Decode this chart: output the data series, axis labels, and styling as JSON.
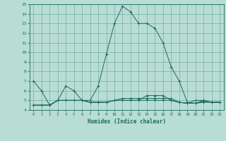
{
  "xlabel": "Humidex (Indice chaleur)",
  "ylabel": "",
  "xlim": [
    -0.5,
    23.5
  ],
  "ylim": [
    4,
    15
  ],
  "yticks": [
    4,
    5,
    6,
    7,
    8,
    9,
    10,
    11,
    12,
    13,
    14,
    15
  ],
  "xticks": [
    0,
    1,
    2,
    3,
    4,
    5,
    6,
    7,
    8,
    9,
    10,
    11,
    12,
    13,
    14,
    15,
    16,
    17,
    18,
    19,
    20,
    21,
    22,
    23
  ],
  "bg_color": "#b8ddd5",
  "line_color": "#1a6b5a",
  "grid_color": "#a0ccc4",
  "lines": [
    [
      7.0,
      6.0,
      4.5,
      5.0,
      6.5,
      6.0,
      5.0,
      5.0,
      6.5,
      9.8,
      13.0,
      14.8,
      14.2,
      13.0,
      13.0,
      12.5,
      11.0,
      8.5,
      7.0,
      4.8,
      4.7,
      5.0,
      4.8,
      4.8
    ],
    [
      4.5,
      4.5,
      4.5,
      5.0,
      5.0,
      5.0,
      5.0,
      4.8,
      4.8,
      4.8,
      5.0,
      5.0,
      5.0,
      5.0,
      5.0,
      5.0,
      5.0,
      5.0,
      4.8,
      4.7,
      4.7,
      4.9,
      4.8,
      4.8
    ],
    [
      4.5,
      4.5,
      4.5,
      5.0,
      5.0,
      5.0,
      5.0,
      4.8,
      4.8,
      4.8,
      5.0,
      5.2,
      5.2,
      5.2,
      5.2,
      5.2,
      5.2,
      5.2,
      4.8,
      4.7,
      5.0,
      5.0,
      4.8,
      4.8
    ],
    [
      4.5,
      4.5,
      4.5,
      5.0,
      5.0,
      5.0,
      5.0,
      4.8,
      4.8,
      4.8,
      5.0,
      5.0,
      5.0,
      5.0,
      5.5,
      5.5,
      5.5,
      5.0,
      4.8,
      4.7,
      4.7,
      4.8,
      4.8,
      4.8
    ]
  ]
}
